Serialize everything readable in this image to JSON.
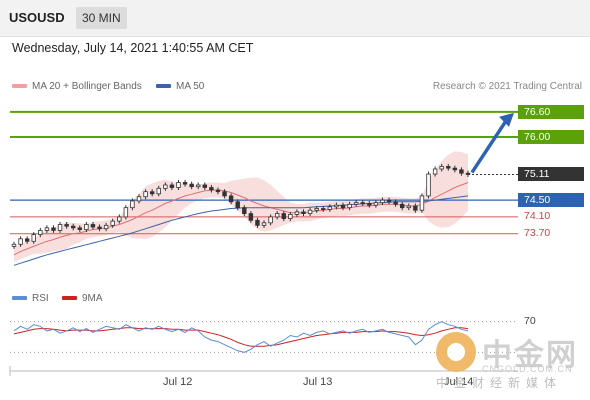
{
  "header": {
    "symbol": "USOUSD",
    "timeframe": "30 MIN"
  },
  "datetime": "Wednesday, July 14, 2021 1:40:55 AM CET",
  "credit": "Research © 2021 Trading Central",
  "legend": {
    "ma20_label": "MA 20 + Bollinger Bands",
    "ma50_label": "MA 50",
    "rsi_label": "RSI",
    "rsi_ma_label": "9MA"
  },
  "colors": {
    "candle": "#333333",
    "bollinger": "#f4c2c2",
    "ma20": "#e07070",
    "ma50": "#3a63a8",
    "resistance": "#5aa10a",
    "pivot": "#2e63b4",
    "support": "#d85a5a",
    "last_price": "#333333",
    "arrow": "#2e63b4",
    "rsi": "#5b8dd9",
    "rsi_ma": "#cc2222"
  },
  "watermark": {
    "logo_text": "中金网",
    "url": "CNGOLD.COM.CN",
    "subtitle": "中金财经新媒体"
  },
  "chart_data": {
    "type": "candlestick",
    "x_labels": [
      "Jul 12",
      "Jul 13",
      "Jul 14"
    ],
    "ylim": [
      72.6,
      77.0
    ],
    "levels": [
      {
        "value": 76.6,
        "label": "76.60",
        "role": "resistance"
      },
      {
        "value": 76.0,
        "label": "76.00",
        "role": "resistance"
      },
      {
        "value": 75.11,
        "label": "75.11",
        "role": "last_price"
      },
      {
        "value": 74.5,
        "label": "74.50",
        "role": "pivot"
      },
      {
        "value": 74.1,
        "label": "74.10",
        "role": "support"
      },
      {
        "value": 73.7,
        "label": "73.70",
        "role": "support"
      }
    ],
    "close": [
      73.45,
      73.58,
      73.52,
      73.68,
      73.78,
      73.84,
      73.78,
      73.92,
      73.88,
      73.84,
      73.8,
      73.92,
      73.86,
      73.82,
      73.9,
      74.0,
      74.1,
      74.32,
      74.48,
      74.58,
      74.7,
      74.65,
      74.78,
      74.86,
      74.8,
      74.92,
      74.88,
      74.82,
      74.86,
      74.8,
      74.74,
      74.7,
      74.6,
      74.46,
      74.32,
      74.18,
      74.02,
      73.9,
      73.96,
      74.1,
      74.18,
      74.06,
      74.16,
      74.22,
      74.18,
      74.26,
      74.3,
      74.28,
      74.34,
      74.38,
      74.32,
      74.4,
      74.44,
      74.42,
      74.38,
      74.44,
      74.5,
      74.46,
      74.4,
      74.32,
      74.36,
      74.26,
      74.6,
      75.12,
      75.24,
      75.3,
      75.26,
      75.22,
      75.14,
      75.11
    ],
    "ma20": [
      73.2,
      73.28,
      73.34,
      73.4,
      73.46,
      73.52,
      73.56,
      73.62,
      73.66,
      73.7,
      73.72,
      73.76,
      73.8,
      73.82,
      73.84,
      73.88,
      73.92,
      73.98,
      74.04,
      74.12,
      74.2,
      74.26,
      74.34,
      74.42,
      74.48,
      74.54,
      74.6,
      74.64,
      74.68,
      74.72,
      74.74,
      74.74,
      74.72,
      74.68,
      74.62,
      74.56,
      74.48,
      74.42,
      74.36,
      74.32,
      74.28,
      74.24,
      74.2,
      74.2,
      74.2,
      74.22,
      74.24,
      74.26,
      74.28,
      74.3,
      74.3,
      74.32,
      74.34,
      74.36,
      74.36,
      74.38,
      74.4,
      74.4,
      74.4,
      74.38,
      74.36,
      74.36,
      74.4,
      74.48,
      74.56,
      74.64,
      74.72,
      74.8,
      74.86,
      74.92
    ],
    "ma50": [
      72.95,
      73.0,
      73.05,
      73.1,
      73.15,
      73.2,
      73.24,
      73.28,
      73.32,
      73.36,
      73.4,
      73.44,
      73.48,
      73.52,
      73.56,
      73.6,
      73.64,
      73.68,
      73.72,
      73.77,
      73.82,
      73.87,
      73.92,
      73.97,
      74.02,
      74.06,
      74.1,
      74.14,
      74.18,
      74.21,
      74.24,
      74.26,
      74.28,
      74.3,
      74.31,
      74.32,
      74.32,
      74.32,
      74.32,
      74.32,
      74.32,
      74.32,
      74.32,
      74.32,
      74.32,
      74.33,
      74.34,
      74.35,
      74.36,
      74.37,
      74.38,
      74.39,
      74.4,
      74.41,
      74.42,
      74.43,
      74.44,
      74.45,
      74.46,
      74.46,
      74.46,
      74.46,
      74.47,
      74.48,
      74.5,
      74.52,
      74.54,
      74.56,
      74.58,
      74.6
    ],
    "rsi": {
      "ylim": [
        20,
        80
      ],
      "level": 70,
      "level_label": "70",
      "rsi": [
        58,
        64,
        60,
        66,
        64,
        58,
        60,
        55,
        58,
        62,
        57,
        61,
        56,
        60,
        64,
        62,
        60,
        66,
        62,
        58,
        62,
        60,
        64,
        60,
        57,
        60,
        56,
        62,
        58,
        50,
        46,
        44,
        40,
        36,
        32,
        30,
        34,
        40,
        44,
        38,
        42,
        46,
        52,
        50,
        55,
        52,
        56,
        58,
        54,
        56,
        58,
        55,
        58,
        60,
        56,
        58,
        60,
        56,
        54,
        52,
        50,
        40,
        46,
        60,
        66,
        70,
        66,
        64,
        60,
        58
      ],
      "ma": [
        54,
        56,
        58,
        60,
        61,
        61,
        60,
        59,
        58,
        59,
        59,
        59,
        58,
        58,
        59,
        60,
        61,
        62,
        62,
        61,
        61,
        61,
        61,
        61,
        60,
        60,
        59,
        59,
        59,
        57,
        55,
        53,
        50,
        47,
        43,
        40,
        38,
        38,
        38,
        39,
        40,
        42,
        44,
        46,
        48,
        50,
        52,
        53,
        54,
        55,
        56,
        56,
        56,
        57,
        57,
        57,
        58,
        57,
        57,
        56,
        55,
        53,
        52,
        53,
        55,
        58,
        60,
        62,
        62,
        61
      ]
    }
  }
}
